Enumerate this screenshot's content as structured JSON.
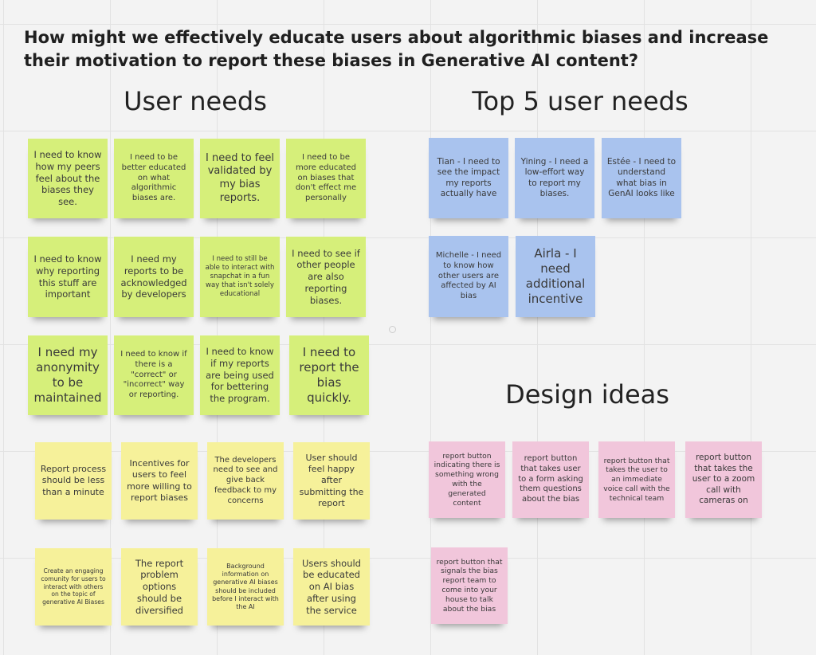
{
  "title": "How might we effectively educate users about algorithmic biases and increase their motivation to report these biases in Generative AI content?",
  "sections": {
    "user_needs": "User needs",
    "top5": "Top 5 user needs",
    "design_ideas": "Design ideas"
  },
  "colors": {
    "green": "#d6ef7a",
    "yellow": "#f6f19a",
    "blue": "#a9c3ee",
    "pink": "#f1c6db"
  },
  "user_needs_notes": [
    "I need to know how my peers feel about the biases they see.",
    "I need to be better educated on what algorithmic biases are.",
    "I need to feel validated by my bias reports.",
    "I need to be more educated on biases that don't effect me personally",
    "I need to know why reporting this stuff are important",
    "I need my reports to be acknowledged by developers",
    "I need to still be able to interact with snapchat in a fun way that isn't solely educational",
    "I need to see if other people are also reporting biases.",
    "I need my anonymity to be maintained",
    "I need to know if there is a \"correct\" or \"incorrect\" way or reporting.",
    "I need to know if my reports are being used for bettering the program.",
    "I need to report the bias quickly.",
    "Report process should be less than a minute",
    "Incentives for users to feel more willing to report biases",
    "The developers need to see and give back feedback to my concerns",
    "User should feel happy after submitting the report",
    "Create an engaging comunity for users to interact with others on the topic of generative AI Biases",
    "The report problem options should be diversified",
    "Background information on generative AI biases should be included before I interact with the AI",
    "Users should be educated on AI bias after using the service"
  ],
  "top5_notes": [
    "Tian - I need to see the impact my reports actually have",
    "Yining - I need a low-effort way to report my biases.",
    "Estée - I need to understand what bias in GenAI looks like",
    "Michelle - I need to know how other users are affected by AI bias",
    "Airla - I need additional incentive"
  ],
  "design_ideas_notes": [
    "report button indicating there is something wrong with the generated content",
    "report button that takes user to a form asking them questions about the bias",
    "report button that takes the user to an immediate voice call with the technical team",
    "report button that takes the user to a zoom call with cameras on",
    "report button that signals the bias report team to come into your house to talk about the bias"
  ]
}
